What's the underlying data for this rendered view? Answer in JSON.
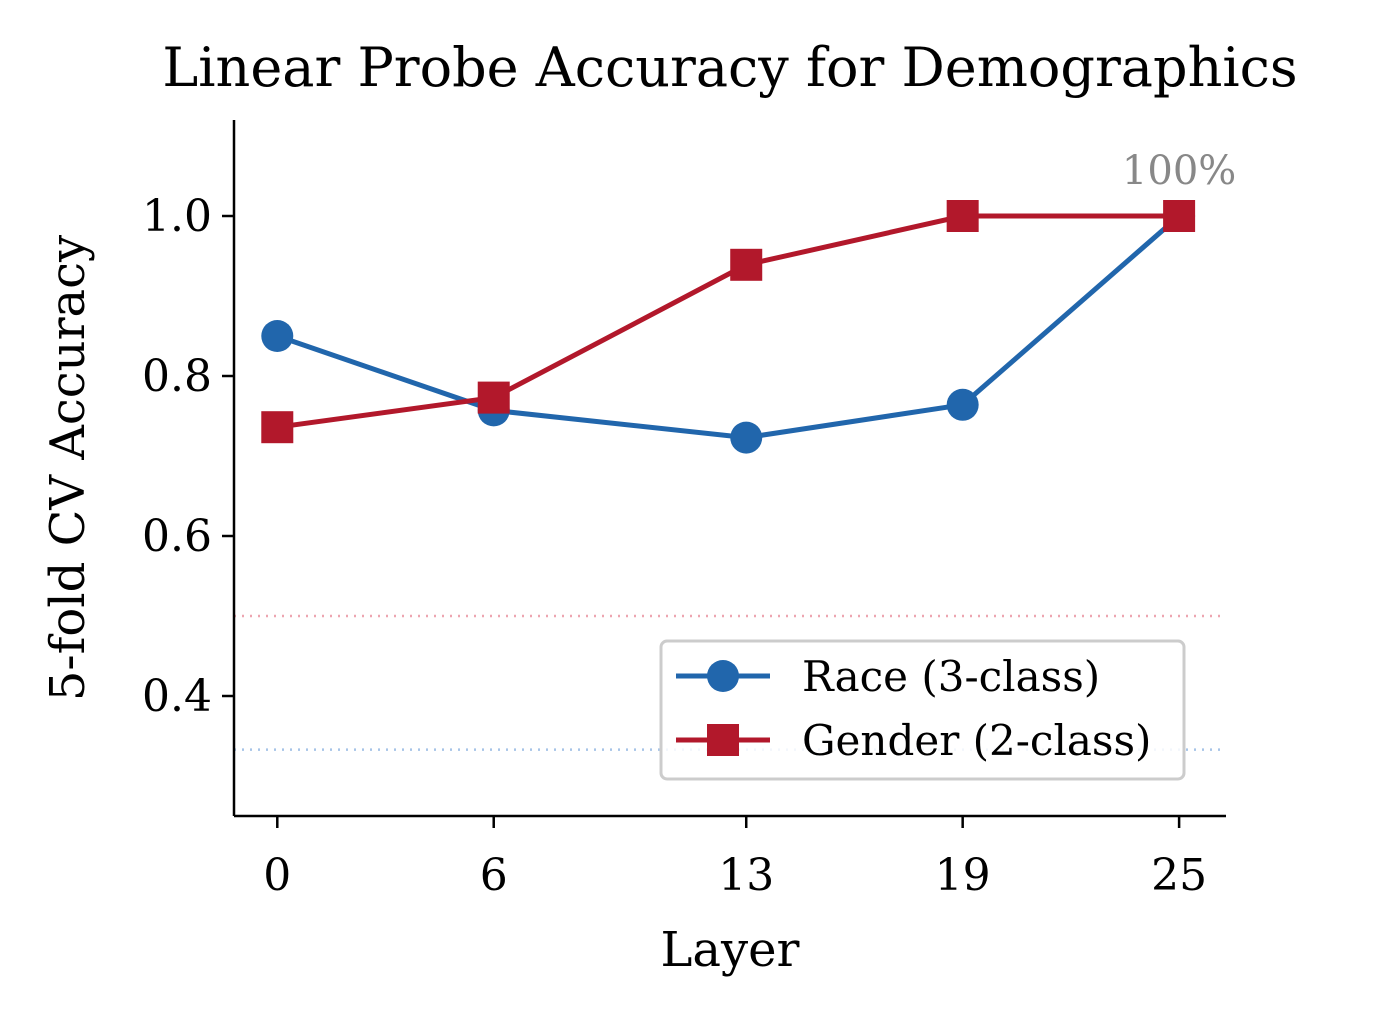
{
  "chart_data": {
    "type": "line",
    "title": "Linear Probe Accuracy for Demographics",
    "xlabel": "Layer",
    "ylabel": "5-fold CV Accuracy",
    "x": [
      0,
      6,
      13,
      19,
      25
    ],
    "xticks": [
      "0",
      "6",
      "13",
      "19",
      "25"
    ],
    "yticks": [
      "0.4",
      "0.6",
      "0.8",
      "1.0"
    ],
    "ytick_values": [
      0.4,
      0.6,
      0.8,
      1.0
    ],
    "xlim": [
      -1.2,
      26.3
    ],
    "ylim": [
      0.25,
      1.12
    ],
    "grid": false,
    "legend_position": "lower-right",
    "series": [
      {
        "name": "Race (3-class)",
        "values": [
          0.85,
          0.757,
          0.723,
          0.764,
          1.0
        ],
        "color": "#2166ac",
        "marker": "circle",
        "chance": 0.333,
        "chance_color": "#a6c4e8"
      },
      {
        "name": "Gender (2-class)",
        "values": [
          0.736,
          0.773,
          0.939,
          1.0,
          1.0
        ],
        "color": "#b2182b",
        "marker": "square",
        "chance": 0.5,
        "chance_color": "#eda5b0"
      }
    ],
    "annotations": [
      {
        "text": "100%",
        "x": 25,
        "y": 1.0,
        "color": "#888888"
      }
    ]
  }
}
